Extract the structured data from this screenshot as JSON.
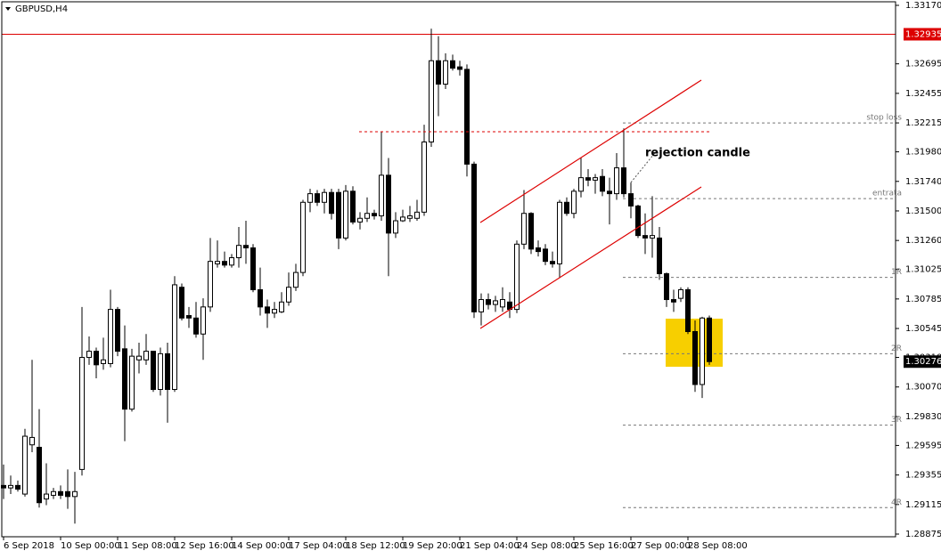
{
  "chart_data": {
    "type": "candlestick",
    "title": "GBPUSD,H4",
    "annotation": "rejection candle",
    "categories": [
      "6 Sep 2018",
      null,
      null,
      null,
      null,
      null,
      null,
      null,
      "10 Sep 00:00",
      null,
      null,
      null,
      null,
      null,
      null,
      null,
      "11 Sep 08:00",
      null,
      null,
      null,
      null,
      null,
      null,
      null,
      "12 Sep 16:00",
      null,
      null,
      null,
      null,
      null,
      null,
      null,
      "14 Sep 00:00",
      null,
      null,
      null,
      null,
      null,
      null,
      null,
      "17 Sep 04:00",
      null,
      null,
      null,
      null,
      null,
      null,
      null,
      "18 Sep 12:00",
      null,
      null,
      null,
      null,
      null,
      null,
      null,
      "19 Sep 20:00",
      null,
      null,
      null,
      null,
      null,
      null,
      null,
      "21 Sep 04:00",
      null,
      null,
      null,
      null,
      null,
      null,
      null,
      "24 Sep 08:00",
      null,
      null,
      null,
      null,
      null,
      null,
      null,
      "25 Sep 16:00",
      null,
      null,
      null,
      null,
      null,
      null,
      null,
      "27 Sep 00:00",
      null,
      null,
      null,
      null,
      null,
      null,
      null,
      "28 Sep 08:00",
      null,
      null,
      null
    ],
    "open": [
      1.2927,
      1.2925,
      1.2927,
      1.292,
      1.296,
      1.2958,
      1.2916,
      1.2919,
      1.2922,
      1.2922,
      1.2918,
      1.294,
      1.3031,
      1.3036,
      1.3026,
      1.3026,
      1.307,
      1.3038,
      1.2989,
      1.3029,
      1.3029,
      1.3036,
      1.3005,
      1.3034,
      1.3005,
      1.3088,
      1.3065,
      1.3063,
      1.305,
      1.3072,
      1.3107,
      1.3109,
      1.3106,
      1.3112,
      1.3122,
      1.312,
      1.3086,
      1.3072,
      1.3067,
      1.3068,
      1.3076,
      1.3088,
      1.31,
      1.3157,
      1.3164,
      1.3157,
      1.3165,
      1.3165,
      1.3128,
      1.3166,
      1.3141,
      1.3144,
      1.3148,
      1.3146,
      1.3179,
      1.3132,
      1.3142,
      1.3144,
      1.3144,
      1.3149,
      1.3206,
      1.3272,
      1.3253,
      1.3272,
      1.3267,
      1.3265,
      1.3188,
      1.3068,
      1.3078,
      1.3074,
      1.3072,
      1.3076,
      1.307,
      1.3123,
      1.3148,
      1.312,
      1.3119,
      1.3109,
      1.3107,
      1.3157,
      1.3148,
      1.3166,
      1.3177,
      1.3175,
      1.3178,
      1.3166,
      1.3164,
      1.3185,
      1.3164,
      1.3154,
      1.313,
      1.3128,
      1.3128,
      1.3099,
      1.3078,
      1.3079,
      1.3086,
      1.3052,
      1.3009,
      1.3063
    ],
    "high": [
      1.2944,
      1.2935,
      1.2931,
      1.2973,
      1.3029,
      1.2989,
      1.2945,
      1.2925,
      1.2927,
      1.294,
      1.2938,
      1.3072,
      1.3048,
      1.3039,
      1.3047,
      1.3086,
      1.3072,
      1.3057,
      1.3038,
      1.3043,
      1.305,
      1.3036,
      1.3039,
      1.3043,
      1.3097,
      1.3091,
      1.3072,
      1.3076,
      1.3079,
      1.3128,
      1.3126,
      1.3117,
      1.3115,
      1.3137,
      1.3142,
      1.3123,
      1.3104,
      1.3078,
      1.3076,
      1.3084,
      1.31,
      1.3107,
      1.3159,
      1.3168,
      1.3167,
      1.3168,
      1.3168,
      1.3168,
      1.3171,
      1.317,
      1.3149,
      1.3161,
      1.3151,
      1.3214,
      1.3193,
      1.3149,
      1.3151,
      1.3154,
      1.3159,
      1.322,
      1.3298,
      1.3292,
      1.3278,
      1.3277,
      1.3272,
      1.3269,
      1.319,
      1.3083,
      1.3083,
      1.3081,
      1.3088,
      1.3084,
      1.3126,
      1.3167,
      1.3149,
      1.3126,
      1.3123,
      1.3117,
      1.3159,
      1.3161,
      1.3168,
      1.3193,
      1.3184,
      1.318,
      1.3184,
      1.3177,
      1.3197,
      1.3217,
      1.3173,
      1.3155,
      1.3148,
      1.3162,
      1.3137,
      1.31,
      1.3086,
      1.3088,
      1.3088,
      1.3061,
      1.3064,
      1.3065
    ],
    "low": [
      1.2916,
      1.292,
      1.2922,
      1.2918,
      1.2954,
      1.2909,
      1.2911,
      1.2916,
      1.2916,
      1.2908,
      1.2896,
      1.2935,
      1.3025,
      1.3014,
      1.3021,
      1.3023,
      1.3032,
      1.2963,
      1.2987,
      1.3018,
      1.3025,
      1.3003,
      1.3,
      1.2978,
      1.3003,
      1.3061,
      1.3055,
      1.3047,
      1.3029,
      1.3068,
      1.3104,
      1.3104,
      1.3104,
      1.3104,
      1.3107,
      1.3084,
      1.3065,
      1.3055,
      1.3063,
      1.3067,
      1.3073,
      1.3085,
      1.3097,
      1.3149,
      1.3154,
      1.3148,
      1.3143,
      1.3119,
      1.3126,
      1.3139,
      1.3135,
      1.3141,
      1.3143,
      1.3142,
      1.3097,
      1.3128,
      1.3141,
      1.3141,
      1.3142,
      1.3146,
      1.3202,
      1.3227,
      1.3249,
      1.3264,
      1.326,
      1.3178,
      1.3063,
      1.3057,
      1.307,
      1.3068,
      1.3068,
      1.3063,
      1.3067,
      1.3119,
      1.3115,
      1.3113,
      1.3106,
      1.3104,
      1.3096,
      1.3146,
      1.3144,
      1.3161,
      1.317,
      1.3164,
      1.3162,
      1.3139,
      1.3159,
      1.3161,
      1.3144,
      1.3128,
      1.3115,
      1.3112,
      1.3094,
      1.3072,
      1.3068,
      1.3076,
      1.305,
      1.3003,
      1.2998,
      1.3025
    ],
    "close": [
      1.2925,
      1.2927,
      1.2924,
      1.2967,
      1.2966,
      1.2913,
      1.292,
      1.2922,
      1.2919,
      1.2918,
      1.2922,
      1.3031,
      1.3036,
      1.3025,
      1.3029,
      1.307,
      1.3036,
      1.2989,
      1.3032,
      1.3032,
      1.3036,
      1.3005,
      1.3034,
      1.3005,
      1.309,
      1.3063,
      1.3063,
      1.305,
      1.3072,
      1.3109,
      1.3109,
      1.3106,
      1.3112,
      1.3122,
      1.312,
      1.3086,
      1.3072,
      1.3067,
      1.307,
      1.3076,
      1.3088,
      1.31,
      1.3157,
      1.3164,
      1.3157,
      1.3165,
      1.3148,
      1.3128,
      1.3166,
      1.3141,
      1.3144,
      1.3148,
      1.3146,
      1.3179,
      1.3132,
      1.3142,
      1.3145,
      1.3146,
      1.3149,
      1.3206,
      1.3272,
      1.3253,
      1.3272,
      1.3266,
      1.3265,
      1.3188,
      1.3068,
      1.3078,
      1.3074,
      1.3077,
      1.3078,
      1.307,
      1.3123,
      1.3148,
      1.3119,
      1.3117,
      1.3109,
      1.3107,
      1.3157,
      1.3148,
      1.3166,
      1.3177,
      1.3175,
      1.3177,
      1.3166,
      1.3164,
      1.3185,
      1.3164,
      1.3154,
      1.313,
      1.3128,
      1.313,
      1.3099,
      1.3078,
      1.3076,
      1.3086,
      1.3052,
      1.3009,
      1.3063,
      1.30276
    ],
    "ylim": [
      1.28875,
      1.3317
    ],
    "yticks": [
      {
        "value": 1.3317,
        "label": "1.33170"
      },
      1.32695,
      1.32455,
      1.32215,
      {
        "value": 1.3198,
        "label": "1.31980"
      },
      {
        "value": 1.3174,
        "label": "1.31740"
      },
      {
        "value": 1.315,
        "label": "1.31500"
      },
      {
        "value": 1.3126,
        "label": "1.31260"
      },
      1.31025,
      1.30785,
      1.30545,
      {
        "value": 1.3031,
        "label": "1.30310"
      },
      {
        "value": 1.3007,
        "label": "1.30070"
      },
      {
        "value": 1.2983,
        "label": "1.29830"
      },
      1.29595,
      1.29355,
      1.29115,
      1.28875
    ],
    "resistance_line": 1.32935,
    "current_price": 1.30276,
    "levels": [
      {
        "label": "stop loss",
        "value": 1.32215
      },
      {
        "label": "entrata",
        "value": 1.316
      },
      {
        "label": "1R",
        "value": 1.3096
      },
      {
        "label": "2R",
        "value": 1.3034
      },
      {
        "label": "3R",
        "value": 1.2976
      },
      {
        "label": "4R",
        "value": 1.2909
      }
    ]
  }
}
